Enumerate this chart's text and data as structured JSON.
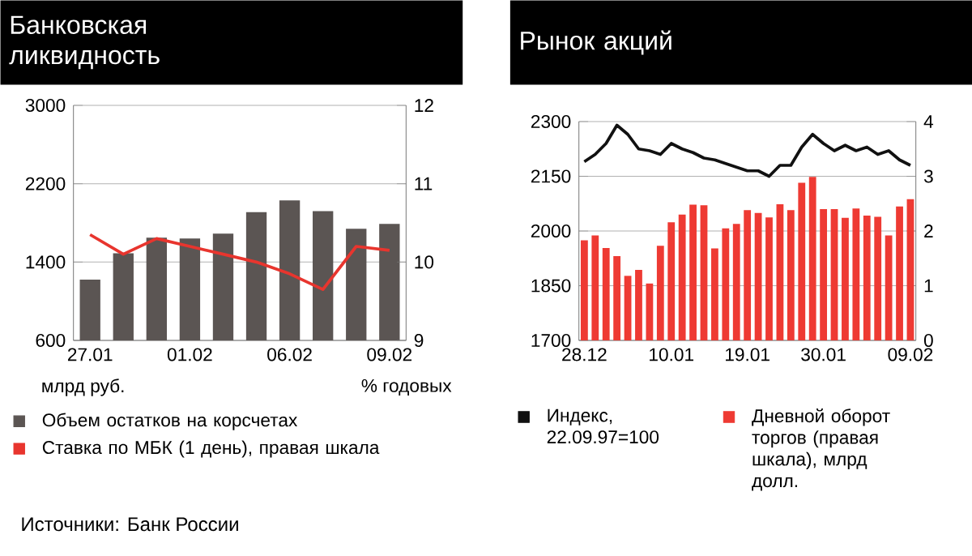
{
  "chart_data": [
    {
      "type": "bar",
      "title": "Банковская ликвидность",
      "ylabel": "млрд руб.",
      "y2label": "% годовых",
      "categories": [
        "27.01",
        null,
        null,
        "01.02",
        null,
        null,
        "06.02",
        null,
        null,
        "09.02"
      ],
      "series": [
        {
          "name": "Объем остатков на корсчетах",
          "color": "#5b5553",
          "values": [
            1220,
            1490,
            1650,
            1640,
            1690,
            1910,
            2030,
            1920,
            1740,
            1790
          ]
        },
        {
          "name": "Ставка по МБК (1 день), правая шкала",
          "type": "line",
          "axis": "y2",
          "color": "#e8352e",
          "values": [
            10.35,
            10.1,
            10.3,
            10.2,
            10.1,
            10.0,
            9.85,
            9.65,
            10.2,
            10.15
          ]
        }
      ],
      "ylim": [
        600,
        3000
      ],
      "yticks": [
        600,
        1400,
        2200,
        3000
      ],
      "y2lim": [
        9,
        12
      ],
      "y2ticks": [
        9,
        10,
        11,
        12
      ],
      "grid": "y",
      "legend": "bottom",
      "annotations": [
        "Источники: Банк России"
      ]
    },
    {
      "type": "bar",
      "title": "Рынок акций",
      "categories": [
        "28.12",
        null,
        null,
        null,
        null,
        null,
        null,
        null,
        "10.01",
        null,
        null,
        null,
        null,
        null,
        null,
        "19.01",
        null,
        null,
        null,
        null,
        null,
        null,
        "30.01",
        null,
        null,
        null,
        null,
        null,
        null,
        null,
        "09.02"
      ],
      "series": [
        {
          "name": "Индекс, 22.09.97=100",
          "type": "line",
          "color": "#111111",
          "values": [
            2190,
            2210,
            2240,
            2290,
            2265,
            2225,
            2220,
            2210,
            2240,
            2225,
            2215,
            2200,
            2195,
            2185,
            2175,
            2165,
            2165,
            2150,
            2180,
            2180,
            2230,
            2265,
            2240,
            2220,
            2235,
            2220,
            2230,
            2210,
            2220,
            2195,
            2180
          ]
        },
        {
          "name": "Дневной оборот торгов (правая шкала), млрд долл.",
          "axis": "y2",
          "color": "#ee3a33",
          "values": [
            1.83,
            1.92,
            1.69,
            1.54,
            1.18,
            1.29,
            1.04,
            1.73,
            2.16,
            2.3,
            2.48,
            2.47,
            1.68,
            2.05,
            2.13,
            2.38,
            2.33,
            2.25,
            2.49,
            2.38,
            2.88,
            2.99,
            2.4,
            2.4,
            2.24,
            2.41,
            2.28,
            2.26,
            1.92,
            2.45,
            2.58
          ]
        }
      ],
      "ylim": [
        1700,
        2300
      ],
      "yticks": [
        1700,
        1850,
        2000,
        2150,
        2300
      ],
      "y2lim": [
        0,
        4
      ],
      "y2ticks": [
        0,
        1,
        2,
        3,
        4
      ],
      "grid": "y",
      "legend": "bottom"
    }
  ]
}
